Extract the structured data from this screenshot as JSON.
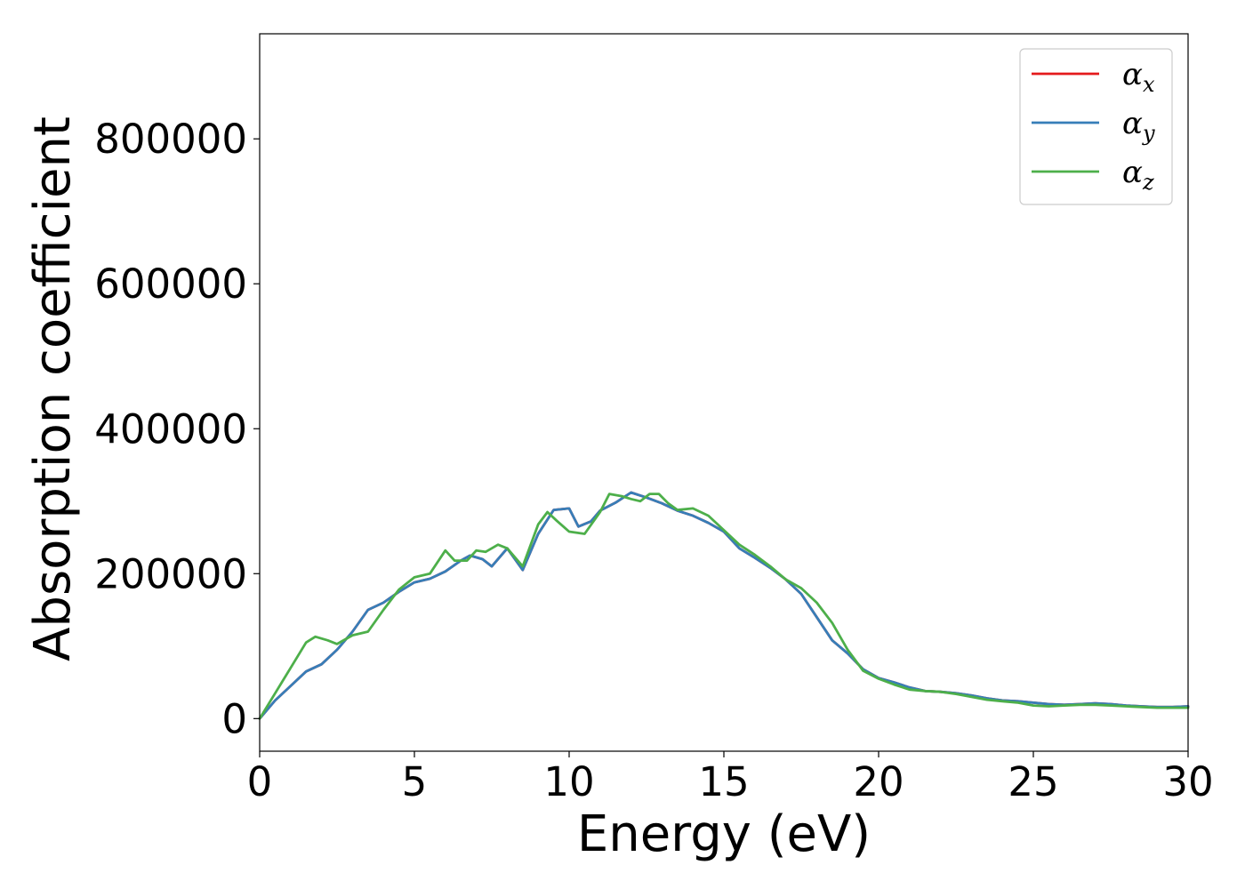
{
  "chart_data": {
    "type": "line",
    "title": "",
    "xlabel": "Energy (eV)",
    "ylabel": "Absorption coefficient",
    "xlim": [
      0,
      30
    ],
    "ylim": [
      -45000,
      945000
    ],
    "xticks": [
      0,
      5,
      10,
      15,
      20,
      25,
      30
    ],
    "xtick_labels": [
      "0",
      "5",
      "10",
      "15",
      "20",
      "25",
      "30"
    ],
    "yticks": [
      0,
      200000,
      400000,
      600000,
      800000
    ],
    "ytick_labels": [
      "0",
      "200000",
      "400000",
      "600000",
      "800000"
    ],
    "grid": false,
    "legend_position": "top-right",
    "series": [
      {
        "name": "α_x",
        "legend_symbol": "α",
        "legend_subscript": "x",
        "color": "#e41a1c",
        "x": [
          0,
          0.5,
          1,
          1.5,
          2,
          2.5,
          3,
          3.5,
          4,
          4.5,
          5,
          5.5,
          6,
          6.5,
          6.8,
          7.2,
          7.5,
          8,
          8.5,
          9,
          9.5,
          10,
          10.3,
          10.7,
          11,
          11.5,
          12,
          12.5,
          13,
          13.5,
          14,
          14.5,
          15,
          15.5,
          16,
          16.5,
          17,
          17.5,
          18,
          18.5,
          19,
          19.5,
          20,
          20.5,
          21,
          21.5,
          22,
          22.5,
          23,
          23.5,
          24,
          24.5,
          25,
          25.5,
          26,
          26.5,
          27,
          27.5,
          28,
          28.5,
          29,
          29.5,
          30
        ],
        "y": [
          0,
          25000,
          45000,
          65000,
          75000,
          95000,
          120000,
          150000,
          160000,
          175000,
          188000,
          193000,
          203000,
          218000,
          225000,
          220000,
          210000,
          235000,
          205000,
          255000,
          288000,
          290000,
          265000,
          272000,
          287000,
          298000,
          312000,
          305000,
          297000,
          287000,
          280000,
          270000,
          258000,
          235000,
          222000,
          208000,
          192000,
          172000,
          140000,
          108000,
          90000,
          68000,
          56000,
          50000,
          43000,
          38000,
          37000,
          35000,
          32000,
          28000,
          25000,
          24000,
          22000,
          20000,
          19000,
          20000,
          21000,
          20000,
          18000,
          17000,
          16000,
          16000,
          17000
        ]
      },
      {
        "name": "α_y",
        "legend_symbol": "α",
        "legend_subscript": "y",
        "color": "#377eb8",
        "x": [
          0,
          0.5,
          1,
          1.5,
          2,
          2.5,
          3,
          3.5,
          4,
          4.5,
          5,
          5.5,
          6,
          6.5,
          6.8,
          7.2,
          7.5,
          8,
          8.5,
          9,
          9.5,
          10,
          10.3,
          10.7,
          11,
          11.5,
          12,
          12.5,
          13,
          13.5,
          14,
          14.5,
          15,
          15.5,
          16,
          16.5,
          17,
          17.5,
          18,
          18.5,
          19,
          19.5,
          20,
          20.5,
          21,
          21.5,
          22,
          22.5,
          23,
          23.5,
          24,
          24.5,
          25,
          25.5,
          26,
          26.5,
          27,
          27.5,
          28,
          28.5,
          29,
          29.5,
          30
        ],
        "y": [
          0,
          25000,
          45000,
          65000,
          75000,
          95000,
          120000,
          150000,
          160000,
          175000,
          188000,
          193000,
          203000,
          218000,
          225000,
          220000,
          210000,
          235000,
          205000,
          255000,
          288000,
          290000,
          265000,
          272000,
          287000,
          298000,
          312000,
          305000,
          297000,
          287000,
          280000,
          270000,
          258000,
          235000,
          222000,
          208000,
          192000,
          172000,
          140000,
          108000,
          90000,
          68000,
          56000,
          50000,
          43000,
          38000,
          37000,
          35000,
          32000,
          28000,
          25000,
          24000,
          22000,
          20000,
          19000,
          20000,
          21000,
          20000,
          18000,
          17000,
          16000,
          16000,
          17000
        ]
      },
      {
        "name": "α_z",
        "legend_symbol": "α",
        "legend_subscript": "z",
        "color": "#4daf4a",
        "x": [
          0,
          0.5,
          1,
          1.5,
          1.8,
          2.2,
          2.5,
          3,
          3.5,
          4,
          4.5,
          5,
          5.5,
          6,
          6.3,
          6.7,
          7,
          7.3,
          7.7,
          8,
          8.5,
          9,
          9.3,
          9.6,
          10,
          10.5,
          11,
          11.3,
          11.7,
          12,
          12.3,
          12.6,
          12.9,
          13.2,
          13.5,
          14,
          14.5,
          15,
          15.5,
          16,
          16.5,
          17,
          17.5,
          18,
          18.5,
          19,
          19.5,
          20,
          20.5,
          21,
          21.5,
          22,
          22.5,
          23,
          23.5,
          24,
          24.5,
          25,
          25.5,
          26,
          26.5,
          27,
          27.5,
          28,
          28.5,
          29,
          29.5,
          30
        ],
        "y": [
          0,
          35000,
          70000,
          105000,
          113000,
          108000,
          103000,
          115000,
          120000,
          150000,
          178000,
          195000,
          200000,
          232000,
          218000,
          218000,
          232000,
          230000,
          240000,
          235000,
          210000,
          268000,
          285000,
          273000,
          258000,
          255000,
          285000,
          310000,
          307000,
          303000,
          300000,
          310000,
          310000,
          297000,
          288000,
          290000,
          280000,
          260000,
          240000,
          226000,
          210000,
          192000,
          180000,
          160000,
          132000,
          95000,
          66000,
          55000,
          47000,
          40000,
          38000,
          37000,
          34000,
          30000,
          26000,
          24000,
          22000,
          18000,
          17000,
          18000,
          19000,
          19000,
          18000,
          17000,
          16000,
          15000,
          15000,
          15000
        ]
      }
    ]
  }
}
